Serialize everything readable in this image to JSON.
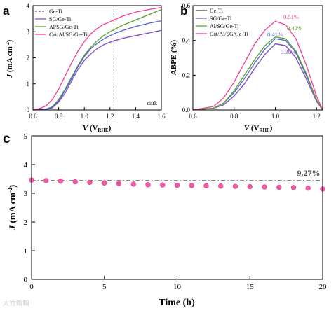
{
  "watermark": "大竹翰翰",
  "colors": {
    "ge_ti": "#444444",
    "sg": "#8a55c8",
    "al": "#5aa02c",
    "cat": "#f03c96",
    "blue": "#4d62d6",
    "c_marker": "#f05aa5",
    "c_ref": "#888888"
  },
  "chart_data": [
    {
      "panel": "a",
      "type": "line",
      "title": "",
      "xlabel": "V (VRHE)",
      "ylabel": "J (mA cm⁻²)",
      "xlim": [
        0.6,
        1.6
      ],
      "ylim": [
        0,
        4
      ],
      "xticks": [
        "0.6",
        "0.8",
        "1.0",
        "1.2",
        "1.4",
        "1.6"
      ],
      "yticks": [
        "0",
        "1",
        "2",
        "3",
        "4"
      ],
      "annotations": [
        "dark"
      ],
      "reference_line_x": 1.23,
      "legend": [
        "Ge-Ti",
        "SG/Ge-Ti",
        "Al/SG/Ge-Ti",
        "Cat/Al/SG/Ge-Ti"
      ],
      "legend_position": "top-left",
      "series": [
        {
          "name": "Ge-Ti",
          "style": "dashed",
          "color_key": "ge_ti",
          "x": [
            0.6,
            0.7,
            0.75,
            0.8,
            0.85,
            0.9,
            0.95,
            1.0,
            1.05,
            1.1,
            1.15,
            1.2,
            1.23,
            1.3,
            1.4,
            1.5,
            1.6
          ],
          "y": [
            0,
            0.02,
            0.08,
            0.3,
            0.65,
            1.1,
            1.55,
            1.9,
            2.15,
            2.35,
            2.5,
            2.6,
            2.65,
            2.75,
            2.85,
            2.95,
            3.05
          ]
        },
        {
          "name": "SG/Ge-Ti",
          "style": "solid",
          "color_key": "sg",
          "x": [
            0.6,
            0.7,
            0.75,
            0.8,
            0.85,
            0.9,
            0.95,
            1.0,
            1.05,
            1.1,
            1.15,
            1.2,
            1.23,
            1.3,
            1.4,
            1.5,
            1.6
          ],
          "y": [
            0,
            0.02,
            0.08,
            0.3,
            0.65,
            1.1,
            1.55,
            1.9,
            2.15,
            2.35,
            2.5,
            2.6,
            2.65,
            2.75,
            2.85,
            2.95,
            3.05
          ]
        },
        {
          "name": "Al/SG/Ge-Ti",
          "style": "solid",
          "color_key": "al",
          "x": [
            0.6,
            0.7,
            0.75,
            0.8,
            0.85,
            0.9,
            0.95,
            1.0,
            1.05,
            1.1,
            1.15,
            1.2,
            1.23,
            1.3,
            1.4,
            1.5,
            1.6
          ],
          "y": [
            0,
            0.03,
            0.12,
            0.4,
            0.8,
            1.25,
            1.7,
            2.1,
            2.4,
            2.65,
            2.85,
            3.0,
            3.08,
            3.25,
            3.45,
            3.65,
            3.85
          ]
        },
        {
          "name": "Blue curve",
          "style": "solid",
          "color_key": "blue",
          "x": [
            0.6,
            0.7,
            0.75,
            0.8,
            0.85,
            0.9,
            0.95,
            1.0,
            1.05,
            1.1,
            1.15,
            1.2,
            1.23,
            1.3,
            1.4,
            1.5,
            1.6
          ],
          "y": [
            0,
            0.03,
            0.1,
            0.35,
            0.75,
            1.2,
            1.65,
            2.05,
            2.35,
            2.55,
            2.72,
            2.85,
            2.92,
            3.05,
            3.2,
            3.32,
            3.42
          ]
        },
        {
          "name": "Cat/Al/SG/Ge-Ti",
          "style": "solid",
          "color_key": "cat",
          "x": [
            0.6,
            0.65,
            0.7,
            0.75,
            0.8,
            0.85,
            0.9,
            0.95,
            1.0,
            1.05,
            1.1,
            1.15,
            1.2,
            1.23,
            1.3,
            1.4,
            1.5,
            1.6
          ],
          "y": [
            0,
            0.05,
            0.15,
            0.4,
            0.8,
            1.3,
            1.8,
            2.25,
            2.62,
            2.92,
            3.12,
            3.28,
            3.38,
            3.45,
            3.6,
            3.75,
            3.85,
            3.93
          ]
        }
      ]
    },
    {
      "panel": "b",
      "type": "line",
      "title": "",
      "xlabel": "V (VRHE)",
      "ylabel": "ABPE (%)",
      "xlim": [
        0.6,
        1.23
      ],
      "ylim": [
        0,
        0.6
      ],
      "xticks": [
        "0.6",
        "0.8",
        "1.0",
        "1.2"
      ],
      "yticks": [
        "0.0",
        "0.2",
        "0.4",
        "0.6"
      ],
      "legend": [
        "Ge-Ti",
        "SG/Ge-Ti",
        "Al/SG/Ge-Ti",
        "Cat/Al/SG/Ge-Ti"
      ],
      "legend_position": "top-left",
      "series": [
        {
          "name": "Ge-Ti",
          "color_key": "ge_ti",
          "x": [
            0.6,
            0.7,
            0.75,
            0.8,
            0.85,
            0.9,
            0.95,
            1.0,
            1.05,
            1.1,
            1.15,
            1.2,
            1.23
          ],
          "y": [
            0,
            0.01,
            0.03,
            0.08,
            0.15,
            0.24,
            0.32,
            0.38,
            0.37,
            0.3,
            0.18,
            0.05,
            0
          ]
        },
        {
          "name": "SG/Ge-Ti",
          "color_key": "sg",
          "x": [
            0.6,
            0.7,
            0.75,
            0.8,
            0.85,
            0.9,
            0.95,
            1.0,
            1.05,
            1.1,
            1.15,
            1.2,
            1.23
          ],
          "y": [
            0,
            0.01,
            0.03,
            0.08,
            0.15,
            0.24,
            0.32,
            0.38,
            0.37,
            0.3,
            0.18,
            0.05,
            0
          ]
        },
        {
          "name": "Blue curve",
          "color_key": "blue",
          "x": [
            0.6,
            0.7,
            0.75,
            0.8,
            0.85,
            0.9,
            0.95,
            1.0,
            1.05,
            1.1,
            1.15,
            1.2,
            1.23
          ],
          "y": [
            0,
            0.01,
            0.04,
            0.1,
            0.18,
            0.27,
            0.35,
            0.41,
            0.4,
            0.33,
            0.2,
            0.06,
            0
          ]
        },
        {
          "name": "Al/SG/Ge-Ti",
          "color_key": "al",
          "x": [
            0.6,
            0.7,
            0.75,
            0.8,
            0.85,
            0.9,
            0.95,
            1.0,
            1.05,
            1.1,
            1.15,
            1.2,
            1.23
          ],
          "y": [
            0,
            0.01,
            0.04,
            0.11,
            0.2,
            0.29,
            0.37,
            0.42,
            0.41,
            0.34,
            0.21,
            0.06,
            0
          ]
        },
        {
          "name": "Cat/Al/SG/Ge-Ti",
          "color_key": "cat",
          "x": [
            0.6,
            0.7,
            0.75,
            0.8,
            0.85,
            0.9,
            0.95,
            1.0,
            1.05,
            1.1,
            1.15,
            1.2,
            1.23
          ],
          "y": [
            0,
            0.02,
            0.07,
            0.16,
            0.27,
            0.38,
            0.46,
            0.51,
            0.49,
            0.41,
            0.26,
            0.08,
            0
          ]
        }
      ],
      "peak_labels": [
        {
          "text": "0.51%",
          "color_key": "cat"
        },
        {
          "text": "0.42%",
          "color_key": "al"
        },
        {
          "text": "0.41%",
          "color_key": "blue"
        },
        {
          "text": "0.38%",
          "color_key": "sg"
        }
      ]
    },
    {
      "panel": "c",
      "type": "scatter",
      "title": "",
      "xlabel": "Time (h)",
      "ylabel": "J (mA cm⁻²)",
      "xlim": [
        0,
        20
      ],
      "ylim": [
        0,
        5
      ],
      "xticks": [
        "0",
        "5",
        "10",
        "15",
        "20"
      ],
      "yticks": [
        "0",
        "1",
        "2",
        "3",
        "4",
        "5"
      ],
      "reference_line_y": 3.45,
      "annotation": "9.27%",
      "series": [
        {
          "name": "",
          "color_key": "c_marker",
          "x": [
            0,
            1,
            2,
            3,
            4,
            5,
            6,
            7,
            8,
            9,
            10,
            11,
            12,
            13,
            14,
            15,
            16,
            17,
            18,
            19,
            20
          ],
          "y": [
            3.46,
            3.44,
            3.42,
            3.4,
            3.38,
            3.36,
            3.34,
            3.32,
            3.3,
            3.29,
            3.28,
            3.27,
            3.26,
            3.25,
            3.24,
            3.23,
            3.22,
            3.21,
            3.2,
            3.18,
            3.15
          ]
        }
      ]
    }
  ]
}
